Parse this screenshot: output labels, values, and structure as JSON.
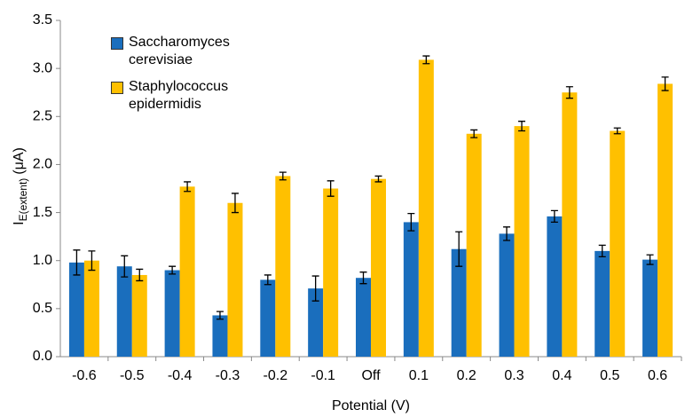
{
  "chart_data": {
    "type": "bar",
    "ylabel": [
      "I",
      "E(extent)",
      "(μA)"
    ],
    "xlabel": "Potential (V)",
    "categories": [
      "-0.6",
      "-0.5",
      "-0.4",
      "-0.3",
      "-0.2",
      "-0.1",
      "Off",
      "0.1",
      "0.2",
      "0.3",
      "0.4",
      "0.5",
      "0.6"
    ],
    "series": [
      {
        "name": "Saccharomyces cerevisiae",
        "color": "#1a6ebd",
        "values": [
          0.98,
          0.94,
          0.9,
          0.43,
          0.8,
          0.71,
          0.82,
          1.4,
          1.12,
          1.28,
          1.46,
          1.1,
          1.01
        ],
        "errors": [
          0.13,
          0.11,
          0.04,
          0.04,
          0.05,
          0.13,
          0.06,
          0.09,
          0.18,
          0.07,
          0.06,
          0.06,
          0.05
        ]
      },
      {
        "name": "Staphylococcus epidermidis",
        "color": "#ffc000",
        "values": [
          1.0,
          0.85,
          1.77,
          1.6,
          1.88,
          1.75,
          1.85,
          3.09,
          2.32,
          2.4,
          2.75,
          2.35,
          2.84
        ],
        "errors": [
          0.1,
          0.06,
          0.05,
          0.1,
          0.04,
          0.08,
          0.03,
          0.04,
          0.04,
          0.05,
          0.06,
          0.03,
          0.07
        ]
      }
    ],
    "ylim": [
      0,
      3.5
    ],
    "yticks": [
      {
        "value": 0,
        "label": "0.0"
      },
      {
        "value": 0.5,
        "label": "0.5"
      },
      {
        "value": 1,
        "label": "1.0"
      },
      {
        "value": 1.5,
        "label": "1.5"
      },
      {
        "value": 2,
        "label": "2.0"
      },
      {
        "value": 2.5,
        "label": "2.5"
      },
      {
        "value": 3,
        "label": "3.0"
      },
      {
        "value": 3.5,
        "label": "3.5"
      }
    ],
    "grid": false
  }
}
